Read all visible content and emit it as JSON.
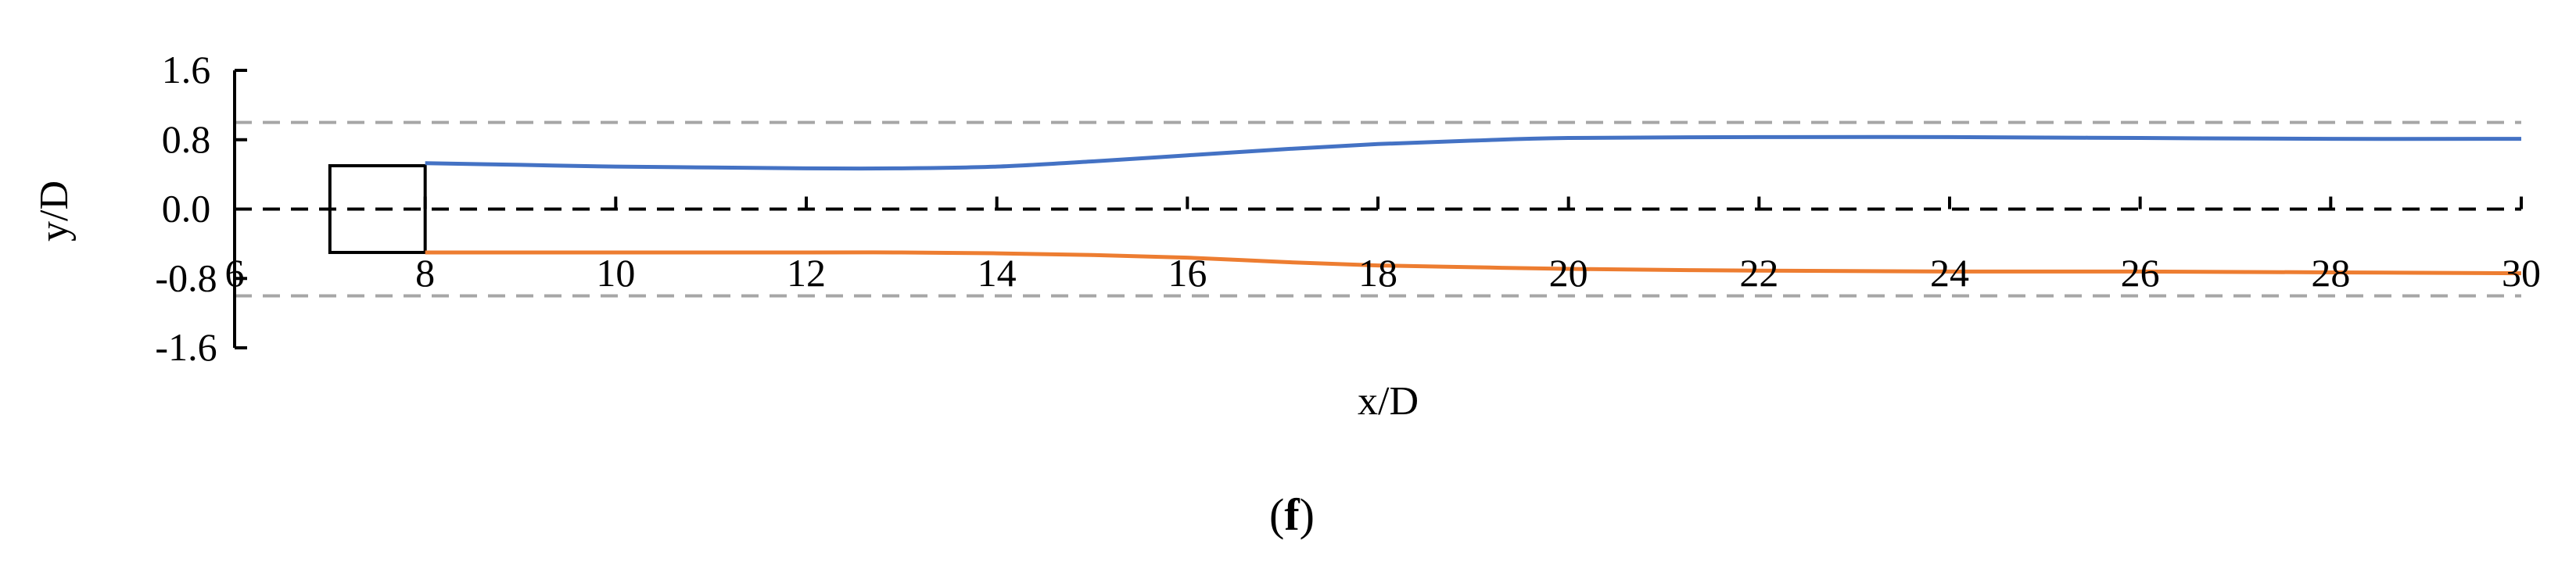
{
  "chart_data": {
    "type": "line",
    "xlabel": "x/D",
    "ylabel": "y/D",
    "xlim": [
      6,
      30
    ],
    "ylim": [
      -1.6,
      1.6
    ],
    "x_ticks": [
      6,
      8,
      10,
      12,
      14,
      16,
      18,
      20,
      22,
      24,
      26,
      28,
      30
    ],
    "x_tick_labels": [
      "6",
      "8",
      "10",
      "12",
      "14",
      "16",
      "18",
      "20",
      "22",
      "24",
      "26",
      "28",
      "30"
    ],
    "y_ticks": [
      1.6,
      0.8,
      0.0,
      -0.8,
      -1.6
    ],
    "y_tick_labels": [
      "1.6",
      "0.8",
      "0.0",
      "-0.8",
      "-1.6"
    ],
    "grid": false,
    "series": [
      {
        "color": "#4472C4",
        "x": [
          8,
          9,
          10,
          11,
          12,
          13,
          14,
          15,
          16,
          17,
          18,
          19,
          20,
          22,
          24,
          26,
          28,
          30
        ],
        "y": [
          0.53,
          0.51,
          0.49,
          0.48,
          0.47,
          0.47,
          0.49,
          0.55,
          0.62,
          0.69,
          0.75,
          0.79,
          0.82,
          0.83,
          0.83,
          0.82,
          0.81,
          0.81
        ]
      },
      {
        "color": "#ED7D31",
        "x": [
          8,
          10,
          12,
          13,
          14,
          15,
          16,
          17,
          18,
          19,
          20,
          22,
          24,
          26,
          28,
          30
        ],
        "y": [
          -0.5,
          -0.5,
          -0.5,
          -0.5,
          -0.51,
          -0.53,
          -0.56,
          -0.61,
          -0.65,
          -0.67,
          -0.69,
          -0.71,
          -0.72,
          -0.72,
          -0.73,
          -0.74
        ]
      }
    ],
    "reference_lines": [
      {
        "y": 1.0,
        "color": "#A6A6A6",
        "style": "dashed"
      },
      {
        "y": -1.0,
        "color": "#A6A6A6",
        "style": "dashed"
      },
      {
        "y": 0.0,
        "color": "#000000",
        "style": "dashed"
      }
    ],
    "obstacle": {
      "x": [
        7,
        8
      ],
      "y": [
        -0.5,
        0.5
      ],
      "color": "#000000"
    },
    "caption": {
      "open": "(",
      "letter": "f",
      "close": ")"
    }
  }
}
